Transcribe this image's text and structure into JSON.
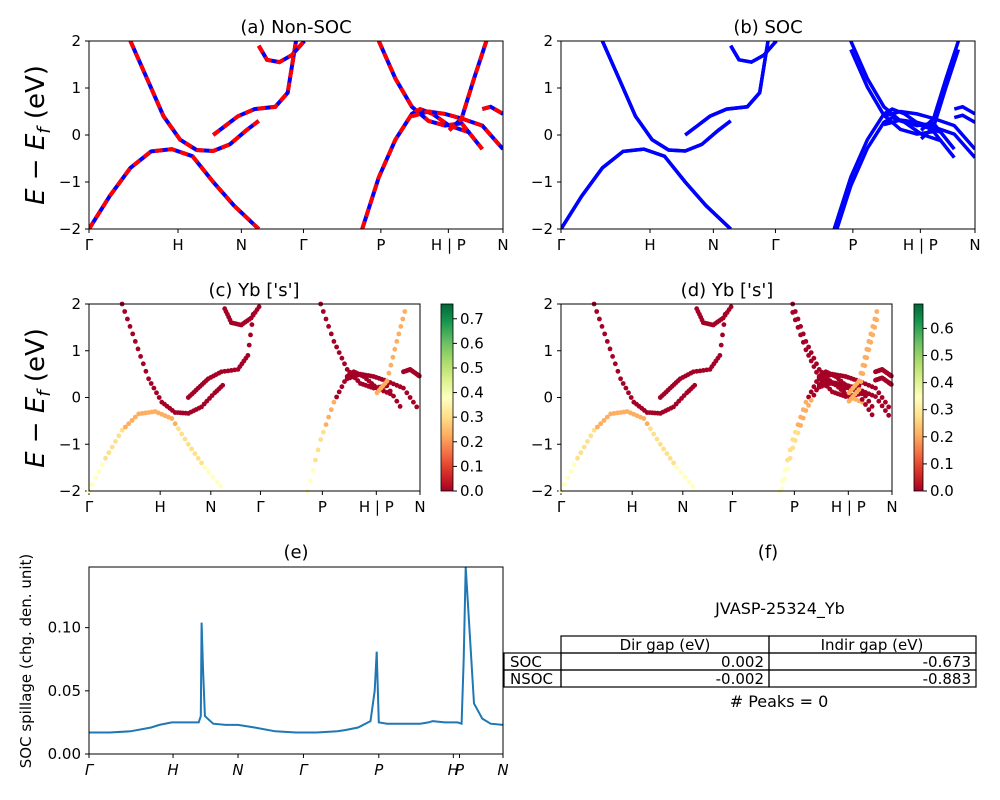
{
  "figure": {
    "ylabel_band": "E − E",
    "ylabel_sub": "f",
    "ylabel_unit": " (eV)",
    "kpath_labels": [
      "Γ",
      "H",
      "N",
      "Γ",
      "P",
      "H | P",
      "N"
    ],
    "kpath_labels_e": [
      "Γ",
      "H",
      "N",
      "Γ",
      "P",
      "H",
      "P",
      "N"
    ]
  },
  "colors": {
    "nonsoc_a": "#ff0000",
    "nonsoc_b": "#0000ff",
    "soc": "#0000ff",
    "spillage": "#1f77b4",
    "cmap": [
      "#a50026",
      "#d73027",
      "#f46d43",
      "#fdae61",
      "#fee08b",
      "#ffffbf",
      "#d9ef8b",
      "#a6d96a",
      "#66bd63",
      "#1a9850",
      "#006837"
    ]
  },
  "chart_data": [
    {
      "id": "a",
      "type": "line",
      "title": "(a) Non-SOC",
      "ylim": [
        -2,
        2
      ],
      "yticks": [
        "2",
        "1",
        "0",
        "−1",
        "−2"
      ],
      "xticks": [
        "Γ",
        "H",
        "N",
        "Γ",
        "P",
        "H | P",
        "N"
      ],
      "series": [
        {
          "x": [
            0.1,
            0.14,
            0.18,
            0.22,
            0.26,
            0.3,
            0.34,
            0.38,
            0.41
          ],
          "y": [
            2.0,
            1.2,
            0.4,
            -0.1,
            -0.32,
            -0.34,
            -0.2,
            0.1,
            0.3
          ]
        },
        {
          "x": [
            0.0,
            0.05,
            0.1,
            0.15,
            0.2,
            0.25,
            0.3,
            0.35,
            0.41
          ],
          "y": [
            -2.0,
            -1.3,
            -0.7,
            -0.35,
            -0.3,
            -0.45,
            -1.0,
            -1.5,
            -2.0
          ]
        },
        {
          "x": [
            0.3,
            0.33,
            0.36,
            0.4,
            0.45,
            0.48,
            0.5
          ],
          "y": [
            0.0,
            0.2,
            0.4,
            0.55,
            0.6,
            0.9,
            2.0
          ]
        },
        {
          "x": [
            0.41,
            0.43,
            0.46,
            0.49,
            0.52
          ],
          "y": [
            1.9,
            1.6,
            1.55,
            1.7,
            2.0
          ]
        },
        {
          "x": [
            0.66,
            0.7,
            0.74,
            0.78,
            0.8,
            0.83,
            0.87,
            0.92
          ],
          "y": [
            -2.0,
            -0.9,
            -0.1,
            0.45,
            0.55,
            0.45,
            0.2,
            0.05
          ]
        },
        {
          "x": [
            0.7,
            0.74,
            0.78,
            0.82,
            0.86,
            0.9,
            0.95
          ],
          "y": [
            2.0,
            1.2,
            0.6,
            0.3,
            0.2,
            0.25,
            -0.3
          ]
        },
        {
          "x": [
            0.78,
            0.82,
            0.86,
            0.9,
            0.95,
            1.0
          ],
          "y": [
            0.4,
            0.5,
            0.45,
            0.35,
            0.2,
            -0.3
          ]
        },
        {
          "x": [
            0.95,
            0.97,
            0.99,
            1.0
          ],
          "y": [
            0.55,
            0.6,
            0.5,
            0.45
          ]
        },
        {
          "x": [
            0.87,
            0.9,
            0.93,
            0.96
          ],
          "y": [
            0.1,
            0.35,
            1.2,
            2.0
          ]
        }
      ]
    },
    {
      "id": "b",
      "type": "line",
      "title": "(b) SOC",
      "ylim": [
        -2,
        2
      ],
      "yticks": [
        "2",
        "1",
        "0",
        "−1",
        "−2"
      ],
      "xticks": [
        "Γ",
        "H",
        "N",
        "Γ",
        "P",
        "H | P",
        "N"
      ]
    },
    {
      "id": "c",
      "type": "scatter",
      "title": "(c)  Yb ['s']",
      "ylim": [
        -2,
        2
      ],
      "yticks": [
        "2",
        "1",
        "0",
        "−1",
        "−2"
      ],
      "xticks": [
        "Γ",
        "H",
        "N",
        "Γ",
        "P",
        "H | P",
        "N"
      ],
      "colorbar": {
        "ticks": [
          "0.7",
          "0.6",
          "0.5",
          "0.4",
          "0.3",
          "0.2",
          "0.1",
          "0.0"
        ],
        "range": [
          0,
          0.76
        ]
      }
    },
    {
      "id": "d",
      "type": "scatter",
      "title": "(d) Yb ['s']",
      "ylim": [
        -2,
        2
      ],
      "yticks": [
        "2",
        "1",
        "0",
        "−1",
        "−2"
      ],
      "xticks": [
        "Γ",
        "H",
        "N",
        "Γ",
        "P",
        "H | P",
        "N"
      ],
      "colorbar": {
        "ticks": [
          "0.6",
          "0.5",
          "0.4",
          "0.3",
          "0.2",
          "0.1",
          "0.0"
        ],
        "range": [
          0,
          0.69
        ]
      }
    },
    {
      "id": "e",
      "type": "line",
      "title": "(e)",
      "ylabel": "SOC spillage (chg. den. unit)",
      "ylim": [
        0,
        0.148
      ],
      "yticks": [
        "0.10",
        "0.05",
        "0.00"
      ],
      "xticks": [
        "Γ",
        "H",
        "N",
        "Γ",
        "P",
        "H",
        "P",
        "N"
      ],
      "x": [
        0.0,
        0.05,
        0.1,
        0.15,
        0.17,
        0.2,
        0.22,
        0.25,
        0.265,
        0.27,
        0.272,
        0.275,
        0.28,
        0.3,
        0.33,
        0.36,
        0.4,
        0.45,
        0.5,
        0.55,
        0.6,
        0.62,
        0.65,
        0.68,
        0.69,
        0.695,
        0.7,
        0.72,
        0.75,
        0.8,
        0.82,
        0.83,
        0.86,
        0.88,
        0.89,
        0.9,
        0.905,
        0.91,
        0.93,
        0.95,
        0.97,
        1.0
      ],
      "y": [
        0.017,
        0.017,
        0.018,
        0.021,
        0.023,
        0.025,
        0.025,
        0.025,
        0.025,
        0.03,
        0.104,
        0.07,
        0.03,
        0.024,
        0.023,
        0.023,
        0.021,
        0.018,
        0.017,
        0.017,
        0.018,
        0.019,
        0.021,
        0.026,
        0.05,
        0.081,
        0.025,
        0.024,
        0.024,
        0.024,
        0.025,
        0.026,
        0.025,
        0.025,
        0.025,
        0.024,
        0.075,
        0.148,
        0.04,
        0.028,
        0.024,
        0.023
      ]
    }
  ],
  "panel_f": {
    "title": "(f)",
    "material": "JVASP-25324_Yb",
    "headers": [
      "Dir gap (eV)",
      "Indir gap (eV)"
    ],
    "rows": [
      {
        "label": "SOC",
        "dir": "0.002",
        "indir": "-0.673"
      },
      {
        "label": "NSOC",
        "dir": "-0.002",
        "indir": "-0.883"
      }
    ],
    "peaks": "# Peaks = 0"
  }
}
